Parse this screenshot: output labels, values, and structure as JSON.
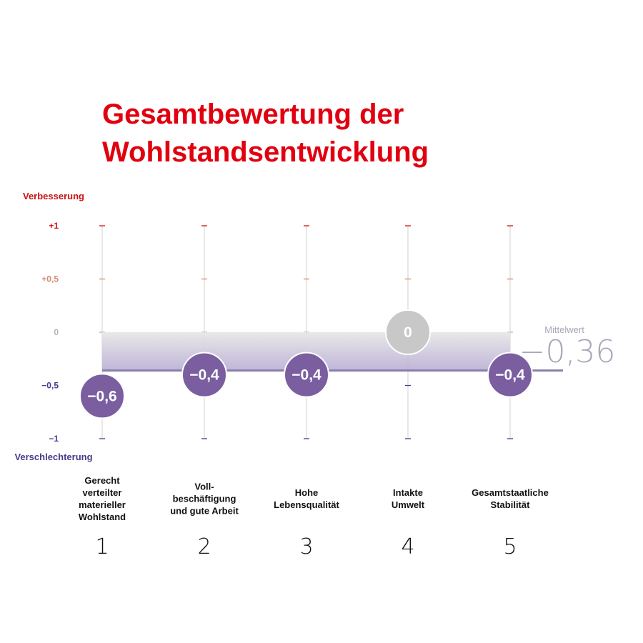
{
  "chart_data": {
    "type": "scatter",
    "title": [
      "Gesamtbewertung der",
      "Wohlstandsentwicklung"
    ],
    "ylabel_top": "Verbesserung",
    "ylabel_bottom": "Verschlechterung",
    "ylim": [
      -1,
      1
    ],
    "yticks": [
      {
        "value": 1,
        "label": "+1"
      },
      {
        "value": 0.5,
        "label": "+0,5"
      },
      {
        "value": 0,
        "label": "0"
      },
      {
        "value": -0.5,
        "label": "−0,5"
      },
      {
        "value": -1,
        "label": "−1"
      }
    ],
    "categories": [
      {
        "number": "1",
        "label": [
          "Gerecht",
          "verteilter",
          "materieller",
          "Wohlstand"
        ],
        "value": -0.6,
        "value_label": "−0,6"
      },
      {
        "number": "2",
        "label": [
          "Voll-",
          "beschäftigung",
          "und gute Arbeit"
        ],
        "value": -0.4,
        "value_label": "−0,4"
      },
      {
        "number": "3",
        "label": [
          "Hohe",
          "Lebensqualität"
        ],
        "value": -0.4,
        "value_label": "−0,4"
      },
      {
        "number": "4",
        "label": [
          "Intakte",
          "Umwelt"
        ],
        "value": 0,
        "value_label": "0"
      },
      {
        "number": "5",
        "label": [
          "Gesamtstaatliche",
          "Stabilität"
        ],
        "value": -0.4,
        "value_label": "−0,4"
      }
    ],
    "mean": {
      "title": "Mittelwert",
      "value": -0.36,
      "value_label": "−0,36"
    }
  },
  "colors": {
    "title": "#e1000f",
    "positive": "#cc1111",
    "half_positive": "#d08a6a",
    "zero": "#b5b5b5",
    "negative": "#4a3a8a",
    "bubble": "#7a5ea0",
    "bubble_zero": "#c8c8c8",
    "mean_line": "#8a80aa",
    "mean_text": "#a8a6b8",
    "gridline": "#d0d0d0",
    "category_text": "#111111"
  }
}
